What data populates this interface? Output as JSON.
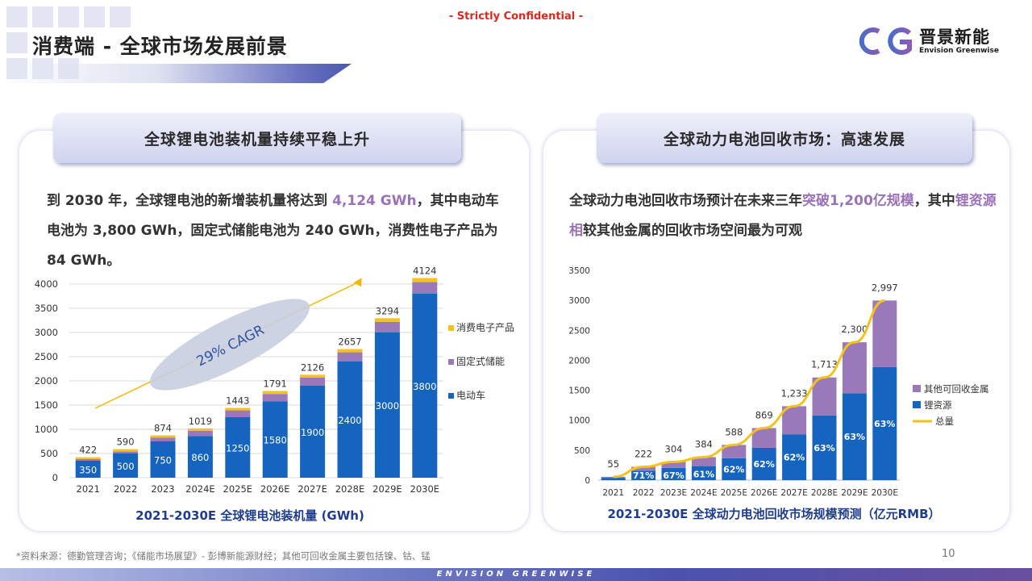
{
  "header": {
    "confidential": "- Strictly Confidential -",
    "title": "消费端 - 全球市场发展前景",
    "logo_cn": "晋景新能",
    "logo_en": "Envision Greenwise"
  },
  "left_panel": {
    "title": "全球锂电池装机量持续平稳上升",
    "para_a": "到 2030 年，全球锂电池的新增装机量将达到 ",
    "para_hl": "4,124 GWh",
    "para_b": "，其中电动车电池为 3,800 GWh，固定式储能电池为 240 GWh，消费性电子产品为 84 GWh。",
    "cagr_label": "29% CAGR",
    "caption": "2021-2030E 全球锂电池装机量 (GWh)"
  },
  "right_panel": {
    "title": "全球动力电池回收市场：高速发展",
    "para_a": "全球动力电池回收市场预计在未来三年",
    "para_hl1": "突破1,200亿规模",
    "para_b": "，其中",
    "para_hl2": "锂资源相",
    "para_c": "较其他金属的回收市场空间最为可观",
    "caption": "2021-2030E 全球动力电池回收市场规模预测（亿元RMB）"
  },
  "colors": {
    "ev": "#1565c0",
    "storage": "#9a79bb",
    "consumer": "#f5c21b",
    "total_line": "#f5c21b",
    "accent": "#9a72b8"
  },
  "chart_data": [
    {
      "type": "bar",
      "stacked": true,
      "categories": [
        "2021",
        "2022",
        "2023",
        "2024E",
        "2025E",
        "2026E",
        "2027E",
        "2028E",
        "2029E",
        "2030E"
      ],
      "series": [
        {
          "name": "电动车",
          "values": [
            350,
            500,
            750,
            860,
            1250,
            1580,
            1900,
            2400,
            3000,
            3800
          ]
        },
        {
          "name": "固定式储能",
          "values": [
            36,
            40,
            80,
            110,
            140,
            150,
            170,
            190,
            220,
            240
          ]
        },
        {
          "name": "消费电子产品",
          "values": [
            36,
            50,
            44,
            49,
            53,
            61,
            56,
            67,
            74,
            84
          ]
        }
      ],
      "totals": [
        422,
        590,
        874,
        1019,
        1443,
        1791,
        2126,
        2657,
        3294,
        4124
      ],
      "ylim": [
        0,
        4000
      ],
      "yticks": [
        0,
        500,
        1000,
        1500,
        2000,
        2500,
        3000,
        3500,
        4000
      ],
      "legend": "right",
      "grid": true
    },
    {
      "type": "bar",
      "stacked": true,
      "categories": [
        "2021",
        "2022",
        "2023E",
        "2024E",
        "2025E",
        "2026E",
        "2027E",
        "2028E",
        "2029E",
        "2030E"
      ],
      "series": [
        {
          "name": "锂资源",
          "values": [
            39,
            158,
            204,
            234,
            365,
            539,
            765,
            1079,
            1449,
            1888
          ]
        },
        {
          "name": "其他可回收金属",
          "values": [
            16,
            64,
            100,
            150,
            223,
            330,
            468,
            634,
            851,
            1109
          ]
        }
      ],
      "share_labels": [
        "",
        "71%",
        "67%",
        "61%",
        "62%",
        "62%",
        "62%",
        "63%",
        "63%",
        "63%"
      ],
      "line": {
        "name": "总量",
        "values": [
          55,
          222,
          304,
          384,
          588,
          869,
          1233,
          1713,
          2300,
          2997
        ]
      },
      "total_labels": [
        "55",
        "222",
        "304",
        "384",
        "588",
        "869",
        "1,233",
        "1,713",
        "2,300",
        "2,997"
      ],
      "ylim": [
        0,
        3500
      ],
      "yticks": [
        0,
        500,
        1000,
        1500,
        2000,
        2500,
        3000,
        3500
      ],
      "legend": "right",
      "grid": false
    }
  ],
  "footer": {
    "source": "*资料来源：德勤管理咨询；《储能市场展望》- 彭博新能源财经；其他可回收金属主要包括镍、钴、锰",
    "page": "10",
    "brand": "ENVISION GREENWISE"
  }
}
